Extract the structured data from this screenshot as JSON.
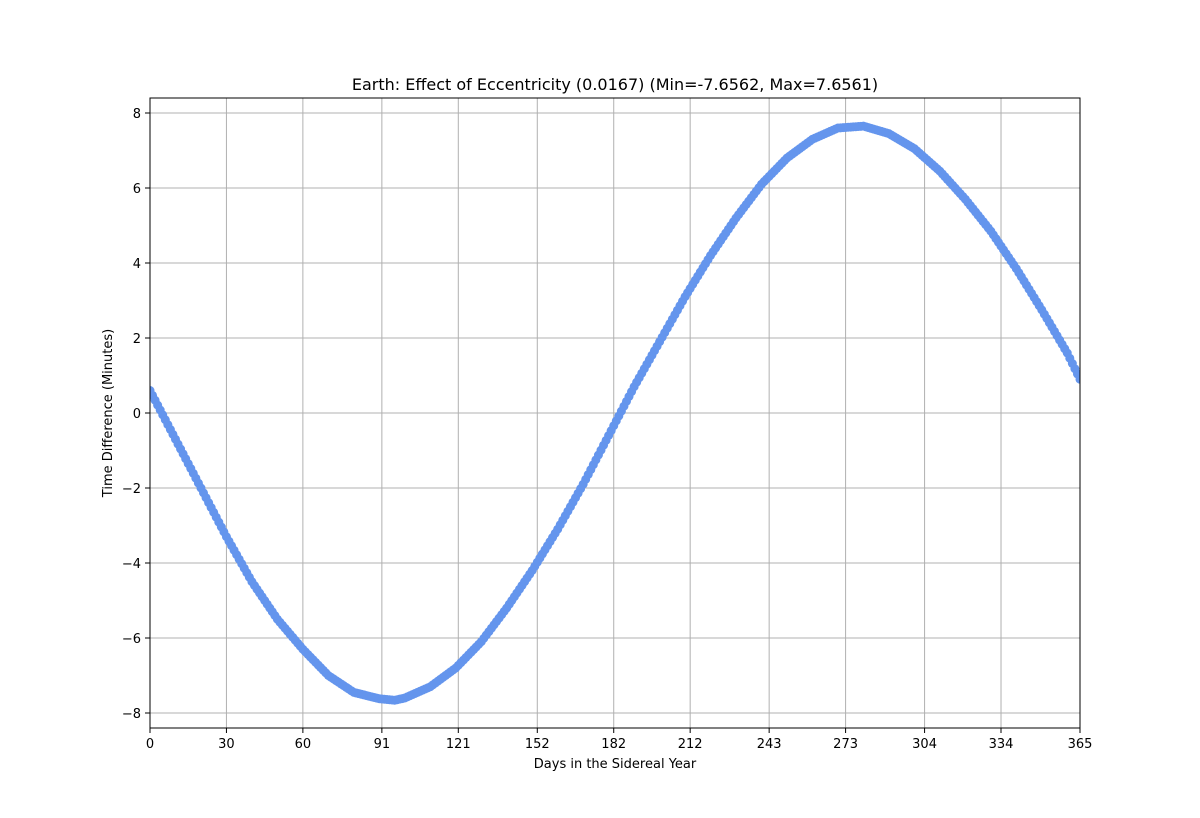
{
  "chart_data": {
    "type": "scatter",
    "title": "Earth: Effect of Eccentricity (0.0167) (Min=-7.6562, Max=7.6561)",
    "xlabel": "Days in the Sidereal Year",
    "ylabel": "Time Difference (Minutes)",
    "xlim": [
      0,
      365
    ],
    "ylim": [
      -8.4,
      8.4
    ],
    "x_ticks": [
      0,
      30,
      60,
      91,
      121,
      152,
      182,
      212,
      243,
      273,
      304,
      334,
      365
    ],
    "x_tick_labels": [
      "0",
      "30",
      "60",
      "91",
      "121",
      "152",
      "182",
      "212",
      "243",
      "273",
      "304",
      "334",
      "365"
    ],
    "y_ticks": [
      -8,
      -6,
      -4,
      -2,
      0,
      2,
      4,
      6,
      8
    ],
    "y_tick_labels": [
      "−8",
      "−6",
      "−4",
      "−2",
      "0",
      "2",
      "4",
      "6",
      "8"
    ],
    "grid": true,
    "marker_color": "#6495ed",
    "series": [
      {
        "x": [
          0,
          10,
          20,
          30,
          40,
          50,
          60,
          70,
          80,
          90,
          96,
          100,
          110,
          120,
          130,
          140,
          150,
          160,
          170,
          180,
          190,
          200,
          210,
          220,
          230,
          240,
          250,
          260,
          270,
          280,
          290,
          300,
          310,
          320,
          330,
          340,
          350,
          360,
          365
        ],
        "y": [
          0.6,
          -0.7,
          -2.0,
          -3.3,
          -4.5,
          -5.5,
          -6.3,
          -7.0,
          -7.45,
          -7.62,
          -7.66,
          -7.6,
          -7.3,
          -6.8,
          -6.1,
          -5.2,
          -4.2,
          -3.1,
          -1.9,
          -0.6,
          0.7,
          1.9,
          3.1,
          4.2,
          5.2,
          6.1,
          6.8,
          7.3,
          7.6,
          7.65,
          7.45,
          7.05,
          6.45,
          5.7,
          4.85,
          3.85,
          2.75,
          1.6,
          0.9
        ]
      }
    ]
  }
}
